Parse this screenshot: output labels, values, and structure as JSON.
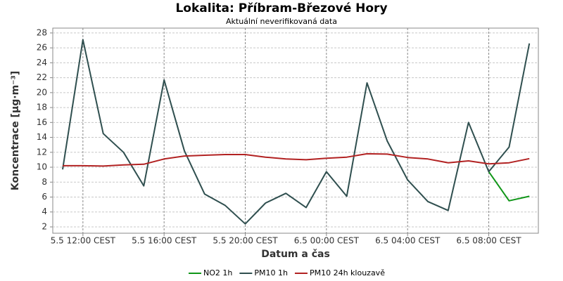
{
  "chart_data": {
    "type": "line",
    "title": "Lokalita: Příbram-Březové Hory",
    "subtitle": "Aktuální neverifikovaná data",
    "x_label": "Datum a čas",
    "y_label": "Koncentrace [µg·m⁻³]",
    "categories": [
      null,
      "5.5 12:00 CEST",
      null,
      null,
      null,
      "5.5 16:00 CEST",
      null,
      null,
      null,
      "5.5 20:00 CEST",
      null,
      null,
      null,
      "6.5 00:00 CEST",
      null,
      null,
      null,
      "6.5 04:00 CEST",
      null,
      null,
      null,
      "6.5 08:00 CEST",
      null,
      null
    ],
    "ylim": [
      1.15,
      28.65
    ],
    "yticks": [
      2,
      4,
      6,
      8,
      10,
      12,
      14,
      16,
      18,
      20,
      22,
      24,
      26,
      28
    ],
    "grid": true,
    "legend": "bottom",
    "series": [
      {
        "name": "NO2 1h",
        "color": "#109618",
        "values": [
          null,
          null,
          null,
          null,
          null,
          null,
          null,
          null,
          null,
          null,
          null,
          null,
          null,
          null,
          null,
          null,
          null,
          null,
          null,
          null,
          null,
          9.4,
          5.5,
          6.1
        ]
      },
      {
        "name": "PM10 1h",
        "color": "#2f4f4f",
        "values": [
          9.7,
          27.1,
          14.5,
          12.0,
          7.5,
          21.7,
          12.2,
          6.4,
          4.9,
          2.4,
          5.2,
          6.5,
          4.6,
          9.4,
          6.1,
          21.3,
          13.5,
          8.3,
          5.4,
          4.2,
          16.0,
          9.4,
          12.7,
          26.6
        ]
      },
      {
        "name": "PM10 24h klouzavě",
        "color": "#b22222",
        "values": [
          10.2,
          10.2,
          10.15,
          10.3,
          10.4,
          11.1,
          11.5,
          11.6,
          11.7,
          11.7,
          11.35,
          11.1,
          11.0,
          11.2,
          11.35,
          11.8,
          11.75,
          11.3,
          11.1,
          10.6,
          10.85,
          10.45,
          10.6,
          11.15
        ]
      }
    ]
  }
}
